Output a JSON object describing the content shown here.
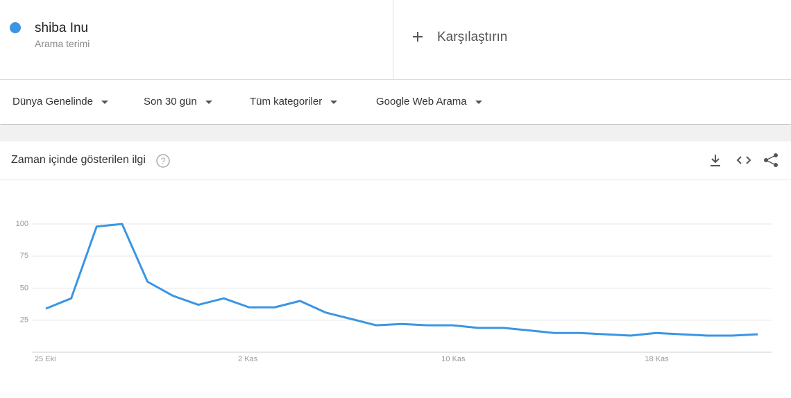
{
  "header": {
    "term": "shiba Inu",
    "subtitle": "Arama terimi",
    "compare": "Karşılaştırın"
  },
  "filters": [
    "Dünya Genelinde",
    "Son 30 gün",
    "Tüm kategoriler",
    "Google Web Arama"
  ],
  "card_title": "Zaman içinde gösterilen ilgi",
  "chart_data": {
    "type": "line",
    "categories": [
      "25 Eki",
      null,
      null,
      null,
      null,
      null,
      null,
      null,
      "2 Kas",
      null,
      null,
      null,
      null,
      null,
      null,
      null,
      "10 Kas",
      null,
      null,
      null,
      null,
      null,
      null,
      null,
      "18 Kas",
      null,
      null,
      null,
      null
    ],
    "series": [
      {
        "name": "shiba Inu",
        "color": "#3b95e3",
        "values": [
          34,
          42,
          98,
          100,
          55,
          44,
          37,
          42,
          35,
          35,
          40,
          31,
          26,
          21,
          22,
          21,
          21,
          19,
          19,
          17,
          15,
          15,
          14,
          13,
          15,
          14,
          13,
          13,
          14
        ]
      }
    ],
    "ylim": [
      0,
      100
    ],
    "yticks": [
      25,
      50,
      75,
      100
    ],
    "grid": true
  }
}
